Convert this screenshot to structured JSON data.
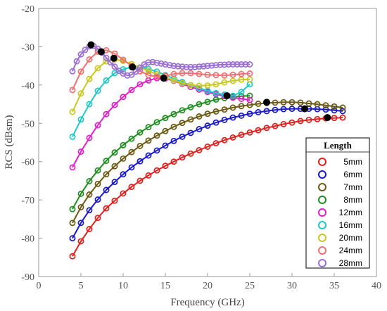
{
  "chart_data": {
    "type": "line",
    "xlabel": "Frequency (GHz)",
    "ylabel": "RCS (dBsm)",
    "xlim": [
      0,
      40
    ],
    "ylim": [
      -90,
      -20
    ],
    "xticks": [
      "0",
      "5",
      "10",
      "15",
      "20",
      "25",
      "30",
      "35",
      "40"
    ],
    "yticks": [
      "-20",
      "-30",
      "-40",
      "-50",
      "-60",
      "-70",
      "-80",
      "-90"
    ],
    "grid": false,
    "legend": {
      "title": "Length",
      "placement": "bottom-right"
    },
    "series": [
      {
        "name": "5mm",
        "color": "#e0201b",
        "x_start": 4,
        "x_end": 36,
        "step": 1,
        "values": [
          -84.7,
          -80.8,
          -77.6,
          -74.7,
          -72.2,
          -70.2,
          -68.3,
          -66.6,
          -65.0,
          -63.6,
          -62.3,
          -61.1,
          -60.0,
          -58.9,
          -57.9,
          -57.0,
          -56.1,
          -55.2,
          -54.4,
          -53.7,
          -53.0,
          -52.4,
          -51.8,
          -51.2,
          -50.7,
          -50.2,
          -49.8,
          -49.4,
          -49.1,
          -48.9,
          -48.7,
          -48.6,
          -48.5
        ]
      },
      {
        "name": "6mm",
        "color": "#1a1ac8",
        "x_start": 4,
        "x_end": 36,
        "step": 1,
        "values": [
          -80.0,
          -76.0,
          -72.7,
          -69.9,
          -67.4,
          -65.3,
          -63.3,
          -61.5,
          -59.9,
          -58.4,
          -57.1,
          -55.8,
          -54.6,
          -53.5,
          -52.5,
          -51.5,
          -50.6,
          -49.8,
          -49.1,
          -48.5,
          -48.0,
          -47.5,
          -47.1,
          -46.8,
          -46.5,
          -46.3,
          -46.2,
          -46.2,
          -46.2,
          -46.3,
          -46.4,
          -46.6,
          -46.8
        ]
      },
      {
        "name": "7mm",
        "color": "#6b5a12",
        "x_start": 4,
        "x_end": 36,
        "step": 1,
        "values": [
          -76.0,
          -71.9,
          -68.6,
          -65.8,
          -63.3,
          -61.2,
          -59.2,
          -57.5,
          -55.9,
          -54.5,
          -53.2,
          -52.0,
          -50.9,
          -49.9,
          -49.0,
          -48.2,
          -47.5,
          -46.9,
          -46.4,
          -45.9,
          -45.5,
          -45.2,
          -44.9,
          -44.7,
          -44.6,
          -44.5,
          -44.5,
          -44.6,
          -44.8,
          -45.0,
          -45.3,
          -45.6,
          -45.9
        ]
      },
      {
        "name": "8mm",
        "color": "#1f8f1f",
        "x_start": 4,
        "x_end": 25,
        "step": 1,
        "values": [
          -72.4,
          -68.4,
          -65.1,
          -62.3,
          -59.8,
          -57.6,
          -55.7,
          -54.0,
          -52.4,
          -51.0,
          -49.7,
          -48.6,
          -47.6,
          -46.6,
          -45.8,
          -45.0,
          -44.4,
          -43.8,
          -43.4,
          -43.1,
          -42.9,
          -42.8
        ]
      },
      {
        "name": "12mm",
        "color": "#e020c8",
        "x_start": 4,
        "x_end": 25,
        "step": 1,
        "values": [
          -61.5,
          -57.4,
          -53.8,
          -50.5,
          -47.6,
          -45.2,
          -43.1,
          -41.3,
          -39.8,
          -38.8,
          -38.2,
          -38.3,
          -38.9,
          -39.7,
          -40.5,
          -41.2,
          -41.8,
          -42.4,
          -42.9,
          -43.3,
          -43.6,
          -43.9
        ]
      },
      {
        "name": "16mm",
        "color": "#1ec8c8",
        "x_start": 4,
        "x_end": 25,
        "step": 1,
        "values": [
          -53.5,
          -49.0,
          -45.0,
          -41.5,
          -38.8,
          -36.9,
          -35.9,
          -35.3,
          -35.4,
          -35.8,
          -36.5,
          -37.4,
          -38.3,
          -39.2,
          -40.0,
          -40.8,
          -41.5,
          -42.1,
          -42.5,
          -42.8,
          -41.8,
          -39.8
        ]
      },
      {
        "name": "20mm",
        "color": "#c8c81e",
        "x_start": 4,
        "x_end": 25,
        "step": 1,
        "values": [
          -47.0,
          -42.2,
          -38.4,
          -35.6,
          -33.8,
          -33.3,
          -33.7,
          -34.5,
          -35.4,
          -36.3,
          -37.2,
          -38.0,
          -38.8,
          -39.5,
          -40.0,
          -40.2,
          -40.1,
          -39.8,
          -39.3,
          -38.9,
          -38.6,
          -38.5
        ]
      },
      {
        "name": "24mm",
        "color": "#f07070",
        "x_start": 4,
        "x_end": 25,
        "step": 1,
        "values": [
          -41.3,
          -36.5,
          -33.3,
          -31.3,
          -30.9,
          -31.8,
          -33.4,
          -35.0,
          -36.4,
          -37.4,
          -37.8,
          -37.6,
          -37.1,
          -36.9,
          -36.9,
          -37.1,
          -37.3,
          -37.4,
          -37.5,
          -37.3,
          -37.1,
          -37.0
        ]
      },
      {
        "name": "28mm",
        "color": "#9b6fd6",
        "x_start": 4,
        "x_end": 25,
        "step": 0.5,
        "values": [
          -36.4,
          -33.8,
          -32.0,
          -30.8,
          -29.9,
          -29.8,
          -30.5,
          -31.6,
          -32.9,
          -34.1,
          -35.2,
          -36.3,
          -37.0,
          -37.5,
          -37.3,
          -36.5,
          -35.5,
          -34.6,
          -34.1,
          -34.0,
          -34.2,
          -34.4,
          -34.6,
          -34.8,
          -35.0,
          -35.1,
          -35.2,
          -35.3,
          -35.3,
          -35.3,
          -35.2,
          -35.1,
          -35.0,
          -34.9,
          -34.8,
          -34.7,
          -34.7,
          -34.6,
          -34.6,
          -34.6,
          -34.6,
          -34.6,
          -34.6
        ]
      }
    ],
    "peak_markers": [
      {
        "x": 6.2,
        "y": -29.5
      },
      {
        "x": 7.4,
        "y": -31.3
      },
      {
        "x": 8.9,
        "y": -33.0
      },
      {
        "x": 11.1,
        "y": -35.3
      },
      {
        "x": 14.8,
        "y": -38.2
      },
      {
        "x": 22.3,
        "y": -42.8
      },
      {
        "x": 27.0,
        "y": -44.5
      },
      {
        "x": 31.5,
        "y": -46.2
      },
      {
        "x": 34.2,
        "y": -48.5
      }
    ]
  }
}
